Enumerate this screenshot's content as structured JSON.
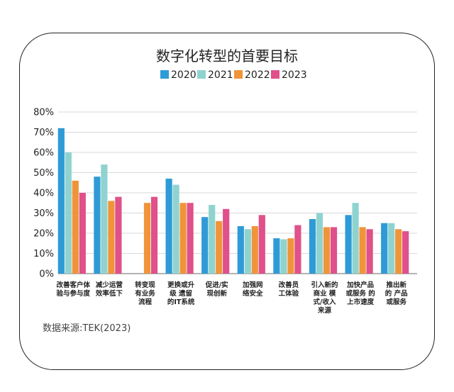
{
  "chart_data": {
    "type": "bar",
    "title": "数字化转型的首要目标",
    "source": "数据来源:TEK(2023)",
    "ylim": [
      0,
      80
    ],
    "yticks": [
      "0%",
      "10%",
      "20%",
      "30%",
      "40%",
      "50%",
      "60%",
      "70%",
      "80%"
    ],
    "grid": true,
    "legend_position": "top",
    "categories": [
      [
        "改善客户体",
        "验与参与度"
      ],
      [
        "减少运营",
        "效率低下"
      ],
      [
        "转变现",
        "有业务",
        "流程"
      ],
      [
        "更换或升",
        "级 遗留",
        "的IT系统"
      ],
      [
        "促进/实",
        "现创新"
      ],
      [
        "加强网",
        "络安全"
      ],
      [
        "改善员",
        "工体验"
      ],
      [
        "引入新的",
        "商业 模",
        "式/收入",
        "来源"
      ],
      [
        "加快产品",
        "或服务 的",
        "上市速度"
      ],
      [
        "推出新",
        "的 产品",
        "或服务"
      ]
    ],
    "series": [
      {
        "name": "2020",
        "color": "#2e9bd6",
        "values": [
          72,
          48,
          null,
          47,
          28,
          23.5,
          17.5,
          27,
          29,
          25
        ]
      },
      {
        "name": "2021",
        "color": "#8fd3d0",
        "values": [
          60,
          54,
          null,
          44,
          34,
          22,
          17,
          30,
          35,
          25
        ]
      },
      {
        "name": "2022",
        "color": "#f0943a",
        "values": [
          46,
          36,
          35,
          35,
          26,
          23.5,
          17.5,
          23,
          23,
          22
        ]
      },
      {
        "name": "2023",
        "color": "#e0508a",
        "values": [
          40,
          38,
          38,
          35,
          32,
          29,
          24,
          23,
          22,
          21
        ]
      }
    ]
  }
}
